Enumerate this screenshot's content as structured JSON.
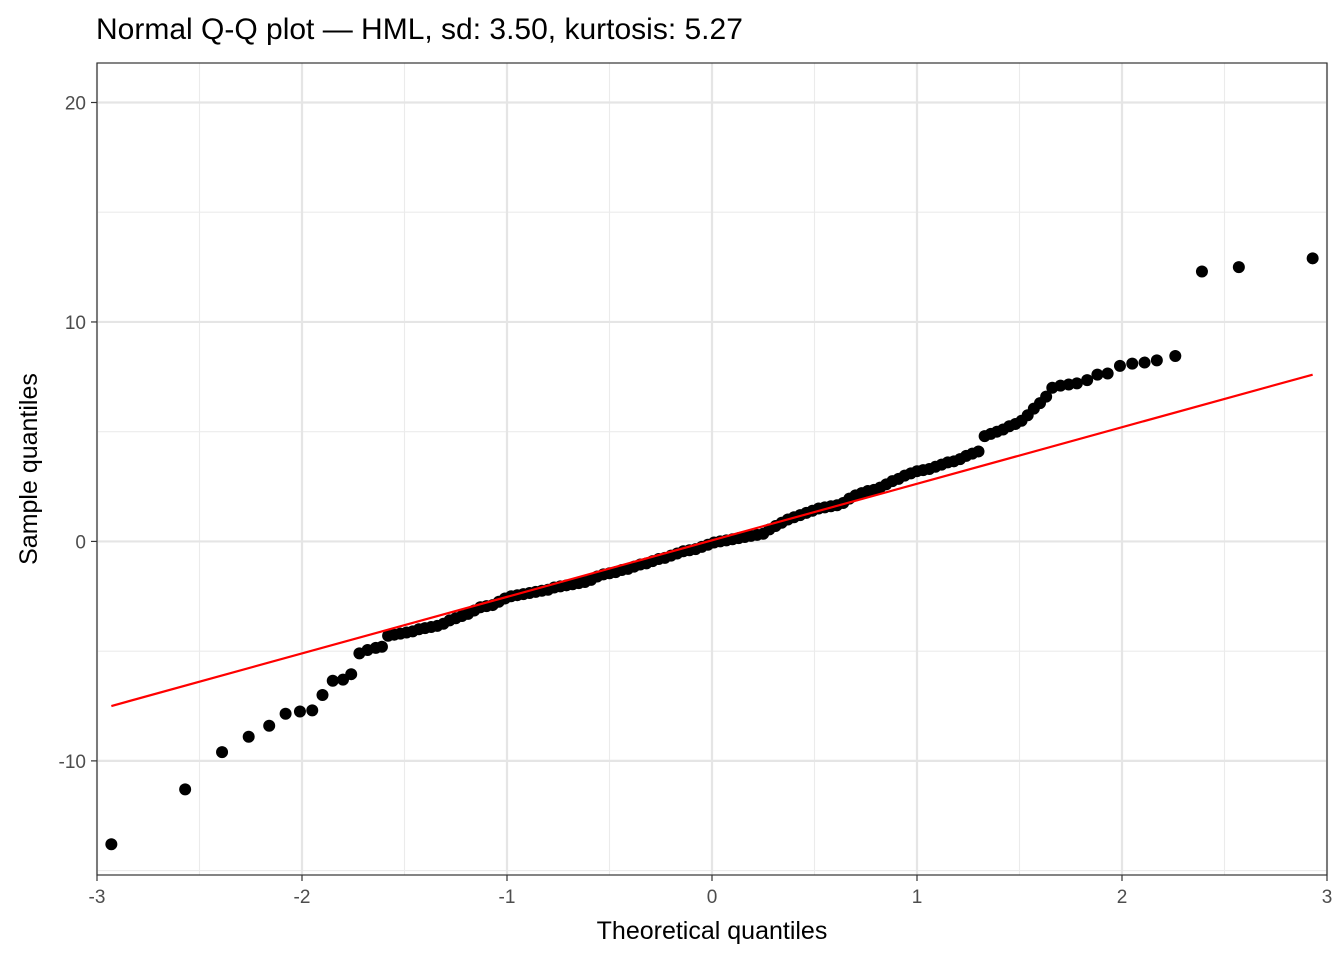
{
  "chart_data": {
    "type": "scatter",
    "title": "Normal Q-Q plot — HML, sd: 3.50, kurtosis: 5.27",
    "xlabel": "Theoretical quantiles",
    "ylabel": "Sample quantiles",
    "xlim": [
      -3.0,
      3.0
    ],
    "ylim": [
      -15.2,
      21.8
    ],
    "x_ticks": [
      -3,
      -2,
      -1,
      0,
      1,
      2,
      3
    ],
    "x_tick_labels": [
      "-3",
      "-2",
      "-1",
      "0",
      "1",
      "2",
      "3"
    ],
    "y_ticks": [
      -10,
      0,
      10,
      20
    ],
    "y_tick_labels": [
      "-10",
      "0",
      "10",
      "20"
    ],
    "grid": true,
    "legend": "none",
    "point_color": "#000000",
    "line_color": "#ff0000",
    "reference_line": {
      "x": [
        -2.93,
        2.93
      ],
      "y": [
        -7.5,
        7.6
      ]
    },
    "series": [
      {
        "points": [
          [
            -2.93,
            -13.8
          ],
          [
            -2.57,
            -11.3
          ],
          [
            -2.39,
            -9.6
          ],
          [
            -2.26,
            -8.9
          ],
          [
            -2.16,
            -8.4
          ],
          [
            -2.08,
            -7.85
          ],
          [
            -2.01,
            -7.75
          ],
          [
            -1.95,
            -7.7
          ],
          [
            -1.9,
            -7.0
          ],
          [
            -1.85,
            -6.35
          ],
          [
            -1.8,
            -6.3
          ],
          [
            -1.76,
            -6.05
          ],
          [
            -1.72,
            -5.1
          ],
          [
            -1.68,
            -4.95
          ],
          [
            -1.64,
            -4.85
          ],
          [
            -1.61,
            -4.8
          ],
          [
            -1.58,
            -4.3
          ],
          [
            -1.55,
            -4.25
          ],
          [
            -1.52,
            -4.2
          ],
          [
            -1.49,
            -4.15
          ],
          [
            -1.46,
            -4.1
          ],
          [
            -1.43,
            -4.0
          ],
          [
            -1.4,
            -3.95
          ],
          [
            -1.37,
            -3.9
          ],
          [
            -1.34,
            -3.85
          ],
          [
            -1.31,
            -3.75
          ],
          [
            -1.28,
            -3.6
          ],
          [
            -1.25,
            -3.5
          ],
          [
            -1.22,
            -3.4
          ],
          [
            -1.19,
            -3.3
          ],
          [
            -1.16,
            -3.15
          ],
          [
            -1.13,
            -3.0
          ],
          [
            -1.1,
            -2.95
          ],
          [
            -1.07,
            -2.9
          ],
          [
            -1.04,
            -2.75
          ],
          [
            -1.01,
            -2.6
          ],
          [
            -0.98,
            -2.5
          ],
          [
            -0.95,
            -2.45
          ],
          [
            -0.92,
            -2.4
          ],
          [
            -0.89,
            -2.35
          ],
          [
            -0.86,
            -2.3
          ],
          [
            -0.83,
            -2.25
          ],
          [
            -0.8,
            -2.2
          ],
          [
            -0.77,
            -2.1
          ],
          [
            -0.74,
            -2.05
          ],
          [
            -0.71,
            -2.0
          ],
          [
            -0.68,
            -1.95
          ],
          [
            -0.65,
            -1.9
          ],
          [
            -0.62,
            -1.85
          ],
          [
            -0.59,
            -1.75
          ],
          [
            -0.56,
            -1.6
          ],
          [
            -0.53,
            -1.5
          ],
          [
            -0.5,
            -1.45
          ],
          [
            -0.47,
            -1.4
          ],
          [
            -0.44,
            -1.3
          ],
          [
            -0.41,
            -1.25
          ],
          [
            -0.38,
            -1.15
          ],
          [
            -0.35,
            -1.05
          ],
          [
            -0.32,
            -1.0
          ],
          [
            -0.29,
            -0.9
          ],
          [
            -0.26,
            -0.8
          ],
          [
            -0.23,
            -0.75
          ],
          [
            -0.2,
            -0.65
          ],
          [
            -0.17,
            -0.55
          ],
          [
            -0.14,
            -0.45
          ],
          [
            -0.11,
            -0.4
          ],
          [
            -0.08,
            -0.35
          ],
          [
            -0.05,
            -0.25
          ],
          [
            -0.02,
            -0.15
          ],
          [
            0.01,
            -0.05
          ],
          [
            0.04,
            0.0
          ],
          [
            0.07,
            0.05
          ],
          [
            0.1,
            0.1
          ],
          [
            0.13,
            0.15
          ],
          [
            0.16,
            0.2
          ],
          [
            0.19,
            0.25
          ],
          [
            0.22,
            0.3
          ],
          [
            0.25,
            0.35
          ],
          [
            0.28,
            0.55
          ],
          [
            0.31,
            0.7
          ],
          [
            0.34,
            0.85
          ],
          [
            0.37,
            1.0
          ],
          [
            0.4,
            1.1
          ],
          [
            0.43,
            1.2
          ],
          [
            0.46,
            1.3
          ],
          [
            0.49,
            1.4
          ],
          [
            0.52,
            1.5
          ],
          [
            0.55,
            1.55
          ],
          [
            0.58,
            1.6
          ],
          [
            0.61,
            1.65
          ],
          [
            0.64,
            1.75
          ],
          [
            0.67,
            1.95
          ],
          [
            0.7,
            2.1
          ],
          [
            0.73,
            2.2
          ],
          [
            0.76,
            2.3
          ],
          [
            0.79,
            2.35
          ],
          [
            0.82,
            2.45
          ],
          [
            0.85,
            2.6
          ],
          [
            0.88,
            2.75
          ],
          [
            0.91,
            2.85
          ],
          [
            0.94,
            3.0
          ],
          [
            0.97,
            3.1
          ],
          [
            1.0,
            3.2
          ],
          [
            1.03,
            3.25
          ],
          [
            1.06,
            3.3
          ],
          [
            1.09,
            3.4
          ],
          [
            1.12,
            3.5
          ],
          [
            1.15,
            3.6
          ],
          [
            1.18,
            3.65
          ],
          [
            1.21,
            3.75
          ],
          [
            1.24,
            3.9
          ],
          [
            1.27,
            4.0
          ],
          [
            1.3,
            4.1
          ],
          [
            1.33,
            4.8
          ],
          [
            1.36,
            4.9
          ],
          [
            1.39,
            5.0
          ],
          [
            1.42,
            5.1
          ],
          [
            1.45,
            5.25
          ],
          [
            1.48,
            5.35
          ],
          [
            1.51,
            5.5
          ],
          [
            1.54,
            5.75
          ],
          [
            1.57,
            6.05
          ],
          [
            1.6,
            6.3
          ],
          [
            1.63,
            6.6
          ],
          [
            1.66,
            7.0
          ],
          [
            1.7,
            7.1
          ],
          [
            1.74,
            7.15
          ],
          [
            1.78,
            7.2
          ],
          [
            1.83,
            7.35
          ],
          [
            1.88,
            7.6
          ],
          [
            1.93,
            7.65
          ],
          [
            1.99,
            8.0
          ],
          [
            2.05,
            8.1
          ],
          [
            2.11,
            8.15
          ],
          [
            2.17,
            8.25
          ],
          [
            2.26,
            8.45
          ],
          [
            2.39,
            12.3
          ],
          [
            2.57,
            12.5
          ],
          [
            2.93,
            12.9
          ]
        ]
      }
    ]
  }
}
